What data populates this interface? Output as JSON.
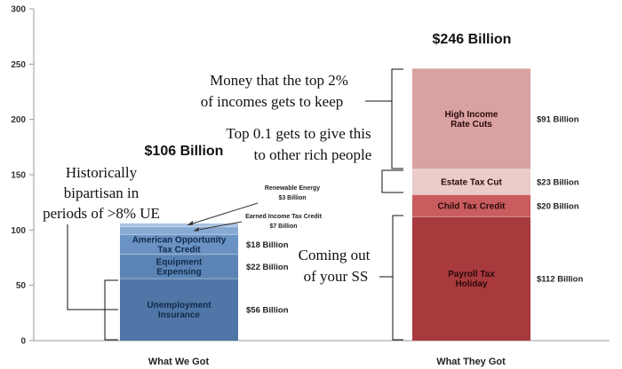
{
  "chart_data": {
    "type": "bar",
    "stacked": true,
    "categories": [
      "What We Got",
      "What They Got"
    ],
    "ylim": [
      0,
      300
    ],
    "yticks": [
      0,
      50,
      100,
      150,
      200,
      250,
      300
    ],
    "totals": [
      "$106 Billion",
      "$246 Billion"
    ],
    "stacks": [
      {
        "category": "What We Got",
        "segments": [
          {
            "name": "Unemployment Insurance",
            "label_lines": [
              "Unemployment",
              "Insurance"
            ],
            "value": 56,
            "value_label": "$56 Billion",
            "color": "#4f76a6",
            "text_color": "#102a4a"
          },
          {
            "name": "Equipment Expensing",
            "label_lines": [
              "Equipment",
              "Expensing"
            ],
            "value": 22,
            "value_label": "$22 Billion",
            "color": "#5b84b5",
            "text_color": "#102a4a"
          },
          {
            "name": "American Opportunity Tax Credit",
            "label_lines": [
              "American Opportunity",
              "Tax Credit"
            ],
            "value": 18,
            "value_label": "$18 Billion",
            "color": "#6a93c4",
            "text_color": "#102a4a"
          },
          {
            "name": "Earned Income Tax Credit",
            "label_lines": [
              "Earned Income Tax Credit",
              "$7 Billion"
            ],
            "value": 7,
            "color": "#86aad3"
          },
          {
            "name": "Renewable Energy",
            "label_lines": [
              "Renewable Energy",
              "$3 Billion"
            ],
            "value": 3,
            "color": "#a9c3e1"
          }
        ]
      },
      {
        "category": "What They Got",
        "segments": [
          {
            "name": "Payroll Tax Holiday",
            "label_lines": [
              "Payroll Tax",
              "Holiday"
            ],
            "value": 112,
            "value_label": "$112 Billion",
            "color": "#a8393d",
            "text_color": "#2a0a0a"
          },
          {
            "name": "Child Tax Credit",
            "label_lines": [
              "Child Tax Credit"
            ],
            "value": 20,
            "value_label": "$20 Billion",
            "color": "#c95c5f",
            "text_color": "#2a0a0a"
          },
          {
            "name": "Estate Tax Cut",
            "label_lines": [
              "Estate Tax Cut"
            ],
            "value": 23,
            "value_label": "$23 Billion",
            "color": "#eccbcb",
            "text_color": "#2a0a0a"
          },
          {
            "name": "High Income Rate Cuts",
            "label_lines": [
              "High Income",
              "Rate Cuts"
            ],
            "value": 91,
            "value_label": "$91 Billion",
            "color": "#d9a1a2",
            "text_color": "#2a0a0a"
          }
        ]
      }
    ],
    "annotations": [
      {
        "id": "bipartisan",
        "lines": [
          "Historically",
          "bipartisan in",
          "periods of >8% UE"
        ]
      },
      {
        "id": "top2",
        "lines": [
          "Money that the top 2%",
          "of incomes gets to keep"
        ]
      },
      {
        "id": "top01",
        "lines": [
          "Top 0.1 gets to give this",
          "to other rich people"
        ]
      },
      {
        "id": "ss",
        "lines": [
          "Coming out",
          "of your SS"
        ]
      }
    ]
  }
}
